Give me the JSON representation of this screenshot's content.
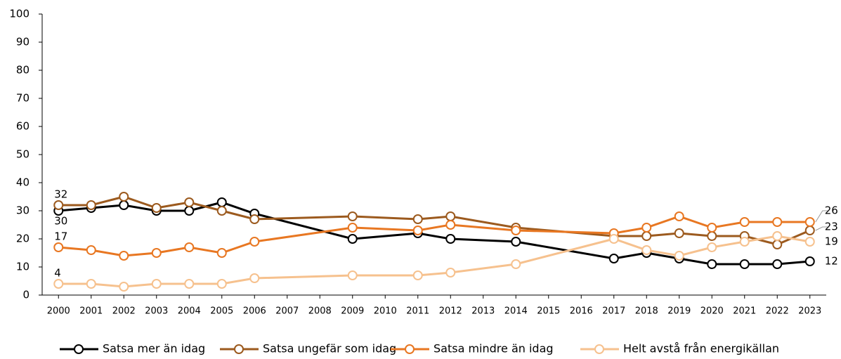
{
  "chart_data": {
    "type": "line",
    "x": [
      2000,
      2001,
      2002,
      2003,
      2004,
      2005,
      2006,
      2009,
      2011,
      2012,
      2014,
      2017,
      2018,
      2019,
      2020,
      2021,
      2022,
      2023
    ],
    "xlim": [
      1999.5,
      2023.5
    ],
    "xticks": [
      2000,
      2001,
      2002,
      2003,
      2004,
      2005,
      2006,
      2007,
      2008,
      2009,
      2010,
      2011,
      2012,
      2013,
      2014,
      2015,
      2016,
      2017,
      2018,
      2019,
      2020,
      2021,
      2022,
      2023
    ],
    "ylim": [
      0,
      100
    ],
    "yticks": [
      0,
      10,
      20,
      30,
      40,
      50,
      60,
      70,
      80,
      90,
      100
    ],
    "grid": false,
    "legend": "bottom",
    "series": [
      {
        "name": "Satsa mer än idag",
        "color": "#000000",
        "values": [
          30,
          31,
          32,
          30,
          30,
          33,
          29,
          20,
          22,
          20,
          19,
          13,
          15,
          13,
          11,
          11,
          11,
          12
        ]
      },
      {
        "name": "Satsa ungefär som idag",
        "color": "#9c5a1e",
        "values": [
          32,
          32,
          35,
          31,
          33,
          30,
          27,
          28,
          27,
          28,
          24,
          21,
          21,
          22,
          21,
          21,
          18,
          23
        ]
      },
      {
        "name": "Satsa mindre än idag",
        "color": "#e87722",
        "values": [
          17,
          16,
          14,
          15,
          17,
          15,
          19,
          24,
          23,
          25,
          23,
          22,
          24,
          28,
          24,
          26,
          26,
          26
        ]
      },
      {
        "name": "Helt avstå från energikällan",
        "color": "#f6c18e",
        "values": [
          4,
          4,
          3,
          4,
          4,
          4,
          6,
          7,
          7,
          8,
          11,
          20,
          16,
          14,
          17,
          19,
          21,
          19
        ]
      }
    ]
  }
}
